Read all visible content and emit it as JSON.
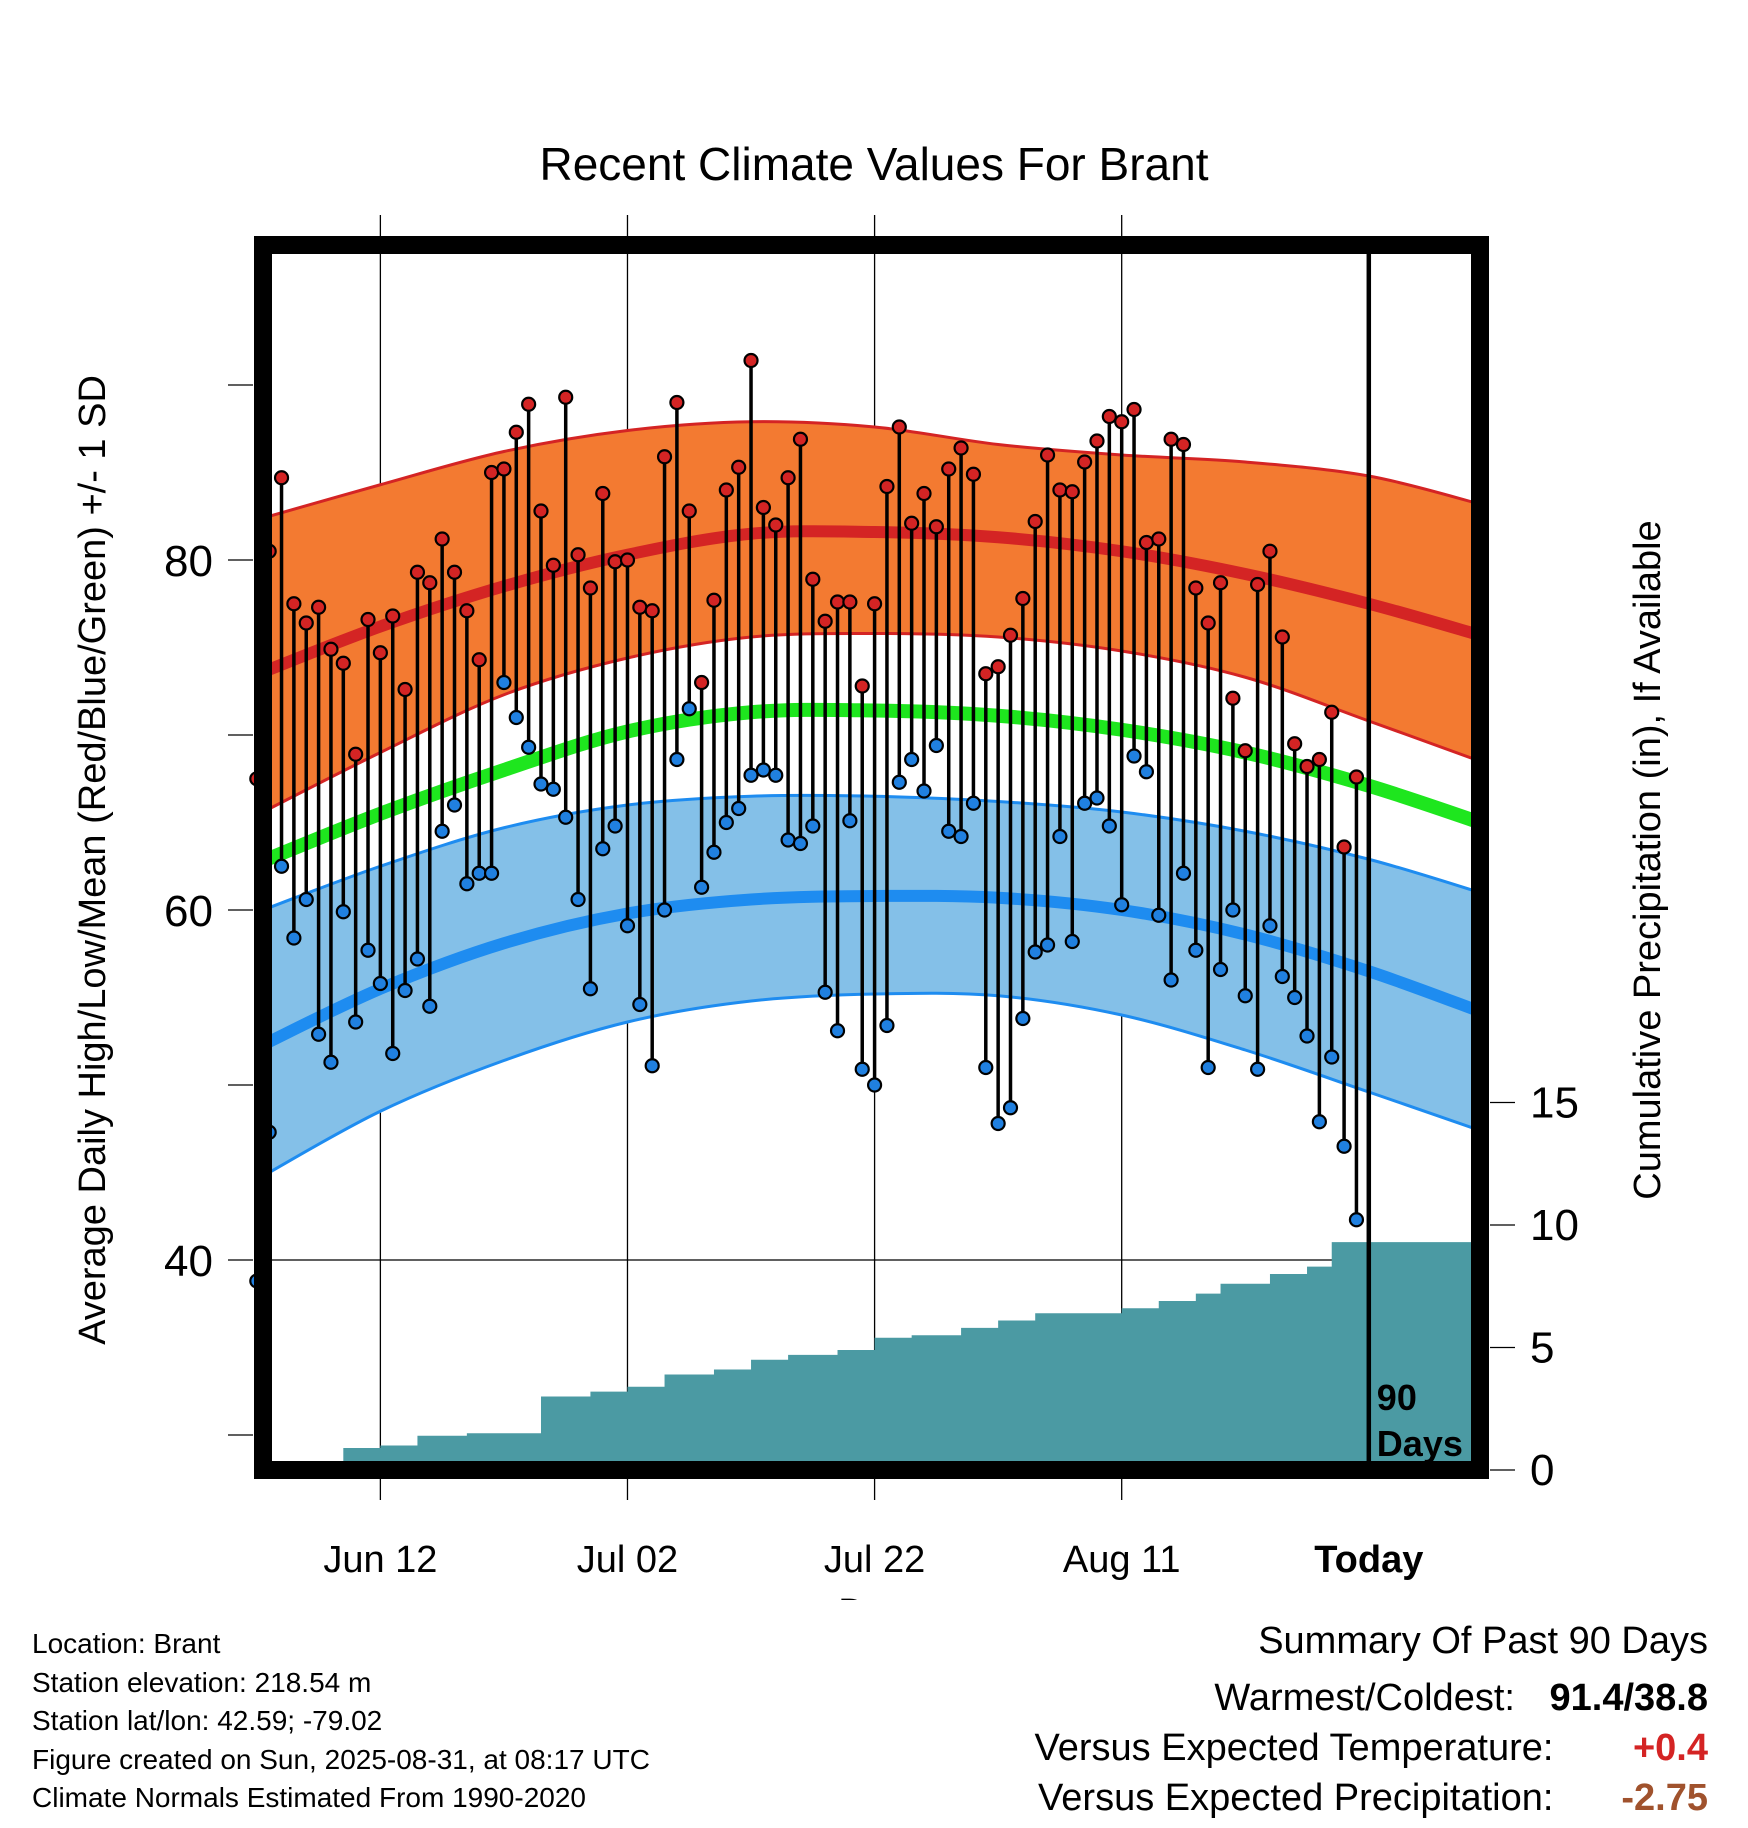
{
  "chart_data": {
    "type": "line",
    "title": "Recent Climate Values For Brant",
    "xlabel": "Day",
    "ylabel": "Average Daily High/Low/Mean (Red/Blue/Green) +/- 1 SD",
    "y2label": "Cumulative Precipitation (in), If Available",
    "ylim": [
      28,
      98
    ],
    "y2lim": [
      0,
      50
    ],
    "yticks": [
      "40",
      "60",
      "80"
    ],
    "y2ticks": [
      "0",
      "5",
      "10",
      "15"
    ],
    "xlim": [
      -89.5,
      9
    ],
    "xticks": [
      {
        "label": "Jun 12",
        "x": -80
      },
      {
        "label": "Jul 02",
        "x": -60
      },
      {
        "label": "Jul 22",
        "x": -40
      },
      {
        "label": "Aug 11",
        "x": -20
      },
      {
        "label": "Today",
        "x": 0
      }
    ],
    "today_label": "90\nDays",
    "grid": true,
    "colors": {
      "high_band": "#f37a31",
      "high_line": "#d42424",
      "mean_line": "#1ee61e",
      "low_band": "#84c0e8",
      "low_line": "#1e8cf0",
      "precip": "#4b9aa3",
      "high_dot": "#d42424",
      "low_dot": "#2080e0"
    },
    "normals_days": [
      -89.5,
      -80,
      -70,
      -60,
      -50,
      -40,
      -30,
      -20,
      -10,
      0,
      9
    ],
    "normal_high": [
      73.6,
      76.2,
      78.5,
      80.3,
      81.5,
      81.6,
      81.3,
      80.5,
      79.2,
      77.5,
      75.7
    ],
    "normal_high_sd_upper": [
      82.4,
      84.3,
      86.2,
      87.4,
      87.9,
      87.6,
      86.6,
      86.0,
      85.6,
      84.8,
      83.2
    ],
    "normal_high_sd_lower": [
      65.6,
      69.0,
      72.3,
      74.4,
      75.6,
      75.8,
      75.6,
      74.8,
      73.3,
      70.8,
      68.5
    ],
    "normal_mean": [
      62.8,
      65.5,
      68.0,
      70.2,
      71.3,
      71.4,
      71.1,
      70.3,
      69.0,
      67.1,
      65.0
    ],
    "normal_low": [
      52.3,
      55.5,
      58.1,
      59.8,
      60.6,
      60.8,
      60.7,
      60.0,
      58.6,
      56.5,
      54.2
    ],
    "normal_low_sd_upper": [
      60.0,
      62.5,
      64.7,
      66.0,
      66.5,
      66.5,
      66.2,
      65.6,
      64.5,
      62.9,
      61.0
    ],
    "normal_low_sd_lower": [
      44.8,
      48.5,
      51.4,
      53.6,
      54.8,
      55.2,
      55.1,
      54.0,
      52.0,
      49.6,
      47.4
    ],
    "daily_high": [
      67.5,
      80.5,
      84.7,
      77.5,
      76.4,
      77.3,
      74.9,
      74.1,
      68.9,
      76.6,
      74.7,
      76.8,
      72.6,
      79.3,
      78.7,
      81.2,
      79.3,
      77.1,
      74.3,
      85.0,
      85.2,
      87.3,
      88.9,
      82.8,
      79.7,
      89.3,
      80.3,
      78.4,
      83.8,
      79.9,
      80.0,
      77.3,
      77.1,
      85.9,
      89.0,
      82.8,
      73.0,
      77.7,
      84.0,
      85.3,
      91.4,
      83.0,
      82.0,
      84.7,
      86.9,
      78.9,
      76.5,
      77.6,
      77.6,
      72.8,
      77.5,
      84.2,
      87.6,
      82.1,
      83.8,
      81.9,
      85.2,
      86.4,
      84.9,
      73.5,
      73.9,
      75.7,
      77.8,
      82.2,
      86.0,
      84.0,
      83.9,
      85.6,
      86.8,
      88.2,
      87.9,
      88.6,
      81.0,
      81.2,
      86.9,
      86.6,
      78.4,
      76.4,
      78.7,
      72.1,
      69.1,
      78.6,
      80.5,
      75.6,
      69.5,
      68.2,
      68.6,
      71.3,
      63.6,
      67.6
    ],
    "daily_low": [
      38.8,
      47.3,
      62.5,
      58.4,
      60.6,
      52.9,
      51.3,
      59.9,
      53.6,
      57.7,
      55.8,
      51.8,
      55.4,
      57.2,
      54.5,
      64.5,
      66.0,
      61.5,
      62.1,
      62.1,
      73.0,
      71.0,
      69.3,
      67.2,
      66.9,
      65.3,
      60.6,
      55.5,
      63.5,
      64.8,
      59.1,
      54.6,
      51.1,
      60.0,
      68.6,
      71.5,
      61.3,
      63.3,
      65.0,
      65.8,
      67.7,
      68.0,
      67.7,
      64.0,
      63.8,
      64.8,
      55.3,
      53.1,
      65.1,
      50.9,
      50.0,
      53.4,
      67.3,
      68.6,
      66.8,
      69.4,
      64.5,
      64.2,
      66.1,
      51.0,
      47.8,
      48.7,
      53.8,
      57.6,
      58.0,
      64.2,
      58.2,
      66.1,
      66.4,
      64.8,
      60.3,
      68.8,
      67.9,
      59.7,
      56.0,
      62.1,
      57.7,
      51.0,
      56.6,
      60.0,
      55.1,
      50.9,
      59.1,
      56.2,
      55.0,
      52.8,
      47.9,
      51.6,
      46.5,
      42.3
    ],
    "precip_steps": [
      [
        -89.5,
        0
      ],
      [
        -83,
        0.9
      ],
      [
        -80,
        1.0
      ],
      [
        -77,
        1.4
      ],
      [
        -73,
        1.5
      ],
      [
        -67,
        3.0
      ],
      [
        -63,
        3.2
      ],
      [
        -60,
        3.4
      ],
      [
        -57,
        3.9
      ],
      [
        -53,
        4.1
      ],
      [
        -50,
        4.5
      ],
      [
        -47,
        4.7
      ],
      [
        -43,
        4.9
      ],
      [
        -40,
        5.4
      ],
      [
        -37,
        5.5
      ],
      [
        -33,
        5.8
      ],
      [
        -30,
        6.1
      ],
      [
        -27,
        6.4
      ],
      [
        -20,
        6.6
      ],
      [
        -17,
        6.9
      ],
      [
        -14,
        7.2
      ],
      [
        -12,
        7.6
      ],
      [
        -8,
        8.0
      ],
      [
        -5,
        8.3
      ],
      [
        -3,
        9.3
      ],
      [
        9,
        9.3
      ]
    ]
  },
  "footer": {
    "location": "Location: Brant",
    "elevation": "Station elevation: 218.54 m",
    "latlon": "Station lat/lon: 42.59; -79.02",
    "created": "Figure created on Sun, 2025-08-31, at 08:17 UTC",
    "normals": "Climate Normals Estimated From 1990-2020"
  },
  "summary": {
    "heading": "Summary Of Past 90 Days",
    "warmest_label": "Warmest/Coldest:",
    "warmest_value": "91.4/38.8",
    "temp_label": "Versus Expected Temperature:",
    "temp_value": "+0.4",
    "temp_color": "#d42424",
    "precip_label": "Versus Expected Precipitation:",
    "precip_value": "-2.75",
    "precip_color": "#a0522d"
  }
}
